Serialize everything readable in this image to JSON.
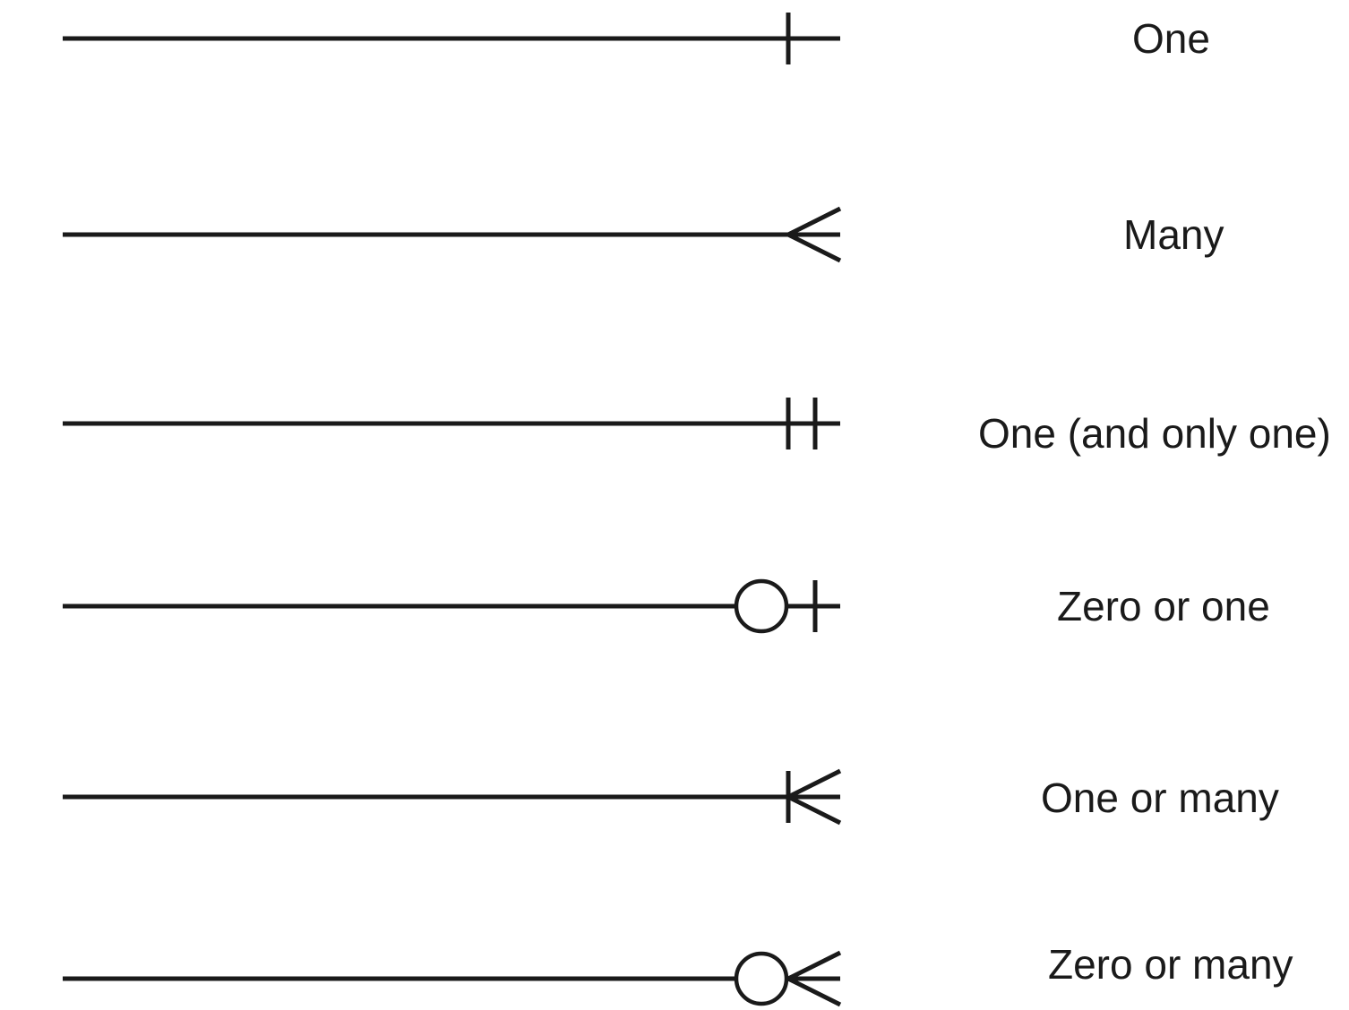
{
  "notations": [
    {
      "label": "One",
      "ends": [
        "bar"
      ]
    },
    {
      "label": "Many",
      "ends": [
        "crow"
      ]
    },
    {
      "label": "One (and only one)",
      "ends": [
        "bar",
        "bar"
      ]
    },
    {
      "label": "Zero or one",
      "ends": [
        "circle",
        "bar"
      ]
    },
    {
      "label": "One or many",
      "ends": [
        "bar",
        "crow"
      ]
    },
    {
      "label": "Zero or many",
      "ends": [
        "circle",
        "crow"
      ]
    }
  ],
  "colors": {
    "stroke": "#1a1a1a",
    "background": "#ffffff"
  }
}
